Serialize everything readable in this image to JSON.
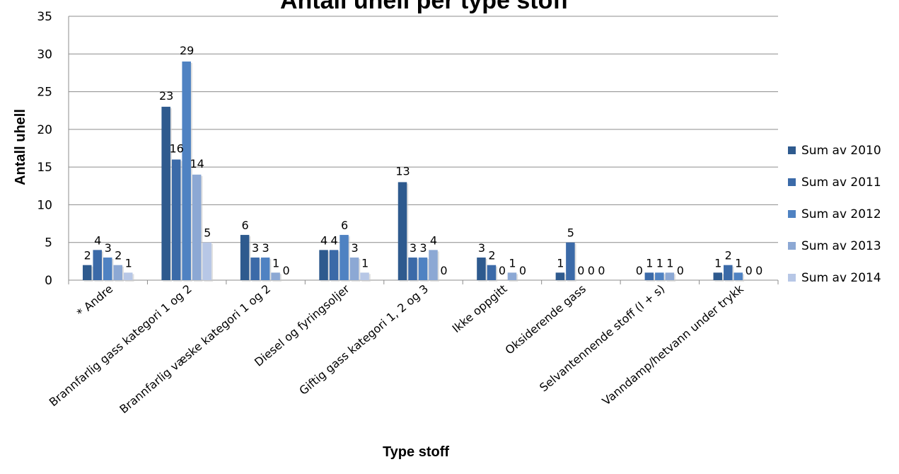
{
  "chart_data": {
    "type": "bar",
    "title": "Antall uhell per type stoff",
    "xlabel": "Type stoff",
    "ylabel": "Antall uhell",
    "ylim": [
      0,
      35
    ],
    "yticks": [
      0,
      5,
      10,
      15,
      20,
      25,
      30,
      35
    ],
    "grid": true,
    "legend_position": "right",
    "categories": [
      "* Andre",
      "Brannfarlig gass kategori 1 og 2",
      "Brannfarlig væske kategori 1 og 2",
      "Diesel og fyringsoljer",
      "Giftig gass kategori 1, 2 og 3",
      "Ikke oppgitt",
      "Oksiderende gass",
      "Selvantennende stoff (l + s)",
      "Vanndamp/hetvann under trykk"
    ],
    "series": [
      {
        "name": "Sum av 2010",
        "color": "#2e5a8e",
        "values": [
          2,
          23,
          6,
          4,
          13,
          3,
          1,
          0,
          1
        ]
      },
      {
        "name": "Sum av 2011",
        "color": "#3b6aa8",
        "values": [
          4,
          16,
          3,
          4,
          3,
          2,
          5,
          1,
          2
        ]
      },
      {
        "name": "Sum av 2012",
        "color": "#4f82c2",
        "values": [
          3,
          29,
          3,
          6,
          3,
          0,
          0,
          1,
          1
        ]
      },
      {
        "name": "Sum av 2013",
        "color": "#8ca8d4",
        "values": [
          2,
          14,
          1,
          3,
          4,
          1,
          0,
          1,
          0
        ]
      },
      {
        "name": "Sum av 2014",
        "color": "#b7c7e6",
        "values": [
          1,
          5,
          0,
          1,
          0,
          0,
          0,
          0,
          0
        ]
      }
    ]
  }
}
